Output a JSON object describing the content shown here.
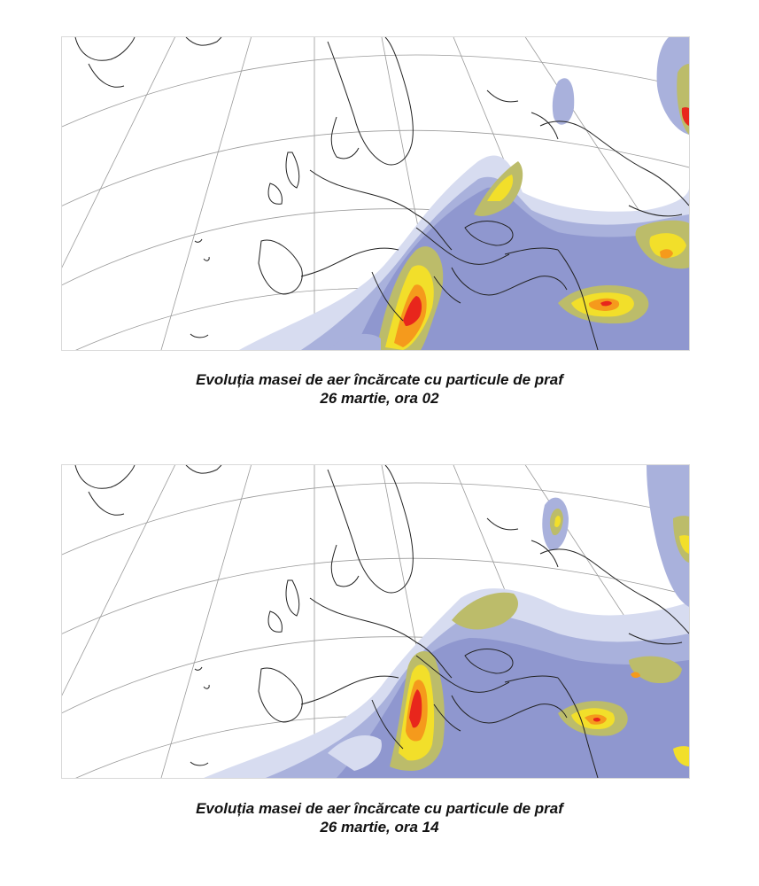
{
  "panels": [
    {
      "caption_line1": "Evoluția masei de aer încărcate cu particule de praf",
      "caption_line2": "26 martie, ora 02"
    },
    {
      "caption_line1": "Evoluția masei de aer încărcate cu particule de praf",
      "caption_line2": "26 martie, ora 14"
    }
  ],
  "colors": {
    "dust_low": "#d7dcf0",
    "dust_light": "#a9b1dc",
    "dust_medium": "#8f97cf",
    "dust_moderate": "#bcbc6a",
    "dust_high": "#f2df2a",
    "dust_very_high": "#f59a1c",
    "dust_extreme": "#e8261c",
    "coastline": "#222222",
    "graticule": "#9a9a9a"
  }
}
